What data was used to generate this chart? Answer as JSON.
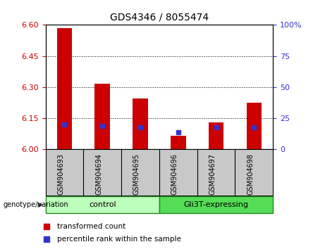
{
  "title": "GDS4346 / 8055474",
  "samples": [
    "GSM904693",
    "GSM904694",
    "GSM904695",
    "GSM904696",
    "GSM904697",
    "GSM904698"
  ],
  "red_bar_bottom": 6.0,
  "red_bar_tops": [
    6.585,
    6.315,
    6.245,
    6.065,
    6.13,
    6.225
  ],
  "blue_percentiles": [
    20,
    19,
    18,
    14,
    18,
    18
  ],
  "ylim": [
    6.0,
    6.6
  ],
  "yticks_left": [
    6.0,
    6.15,
    6.3,
    6.45,
    6.6
  ],
  "yticks_right": [
    0,
    25,
    50,
    75,
    100
  ],
  "bar_color": "#cc0000",
  "blue_color": "#3333cc",
  "bg_color": "#c8c8c8",
  "control_color": "#bbffbb",
  "gli_color": "#55dd55",
  "group_border_color": "#228822",
  "legend_red_label": "transformed count",
  "legend_blue_label": "percentile rank within the sample",
  "genotype_label": "genotype/variation",
  "control_label": "control",
  "gli_label": "Gli3T-expressing"
}
